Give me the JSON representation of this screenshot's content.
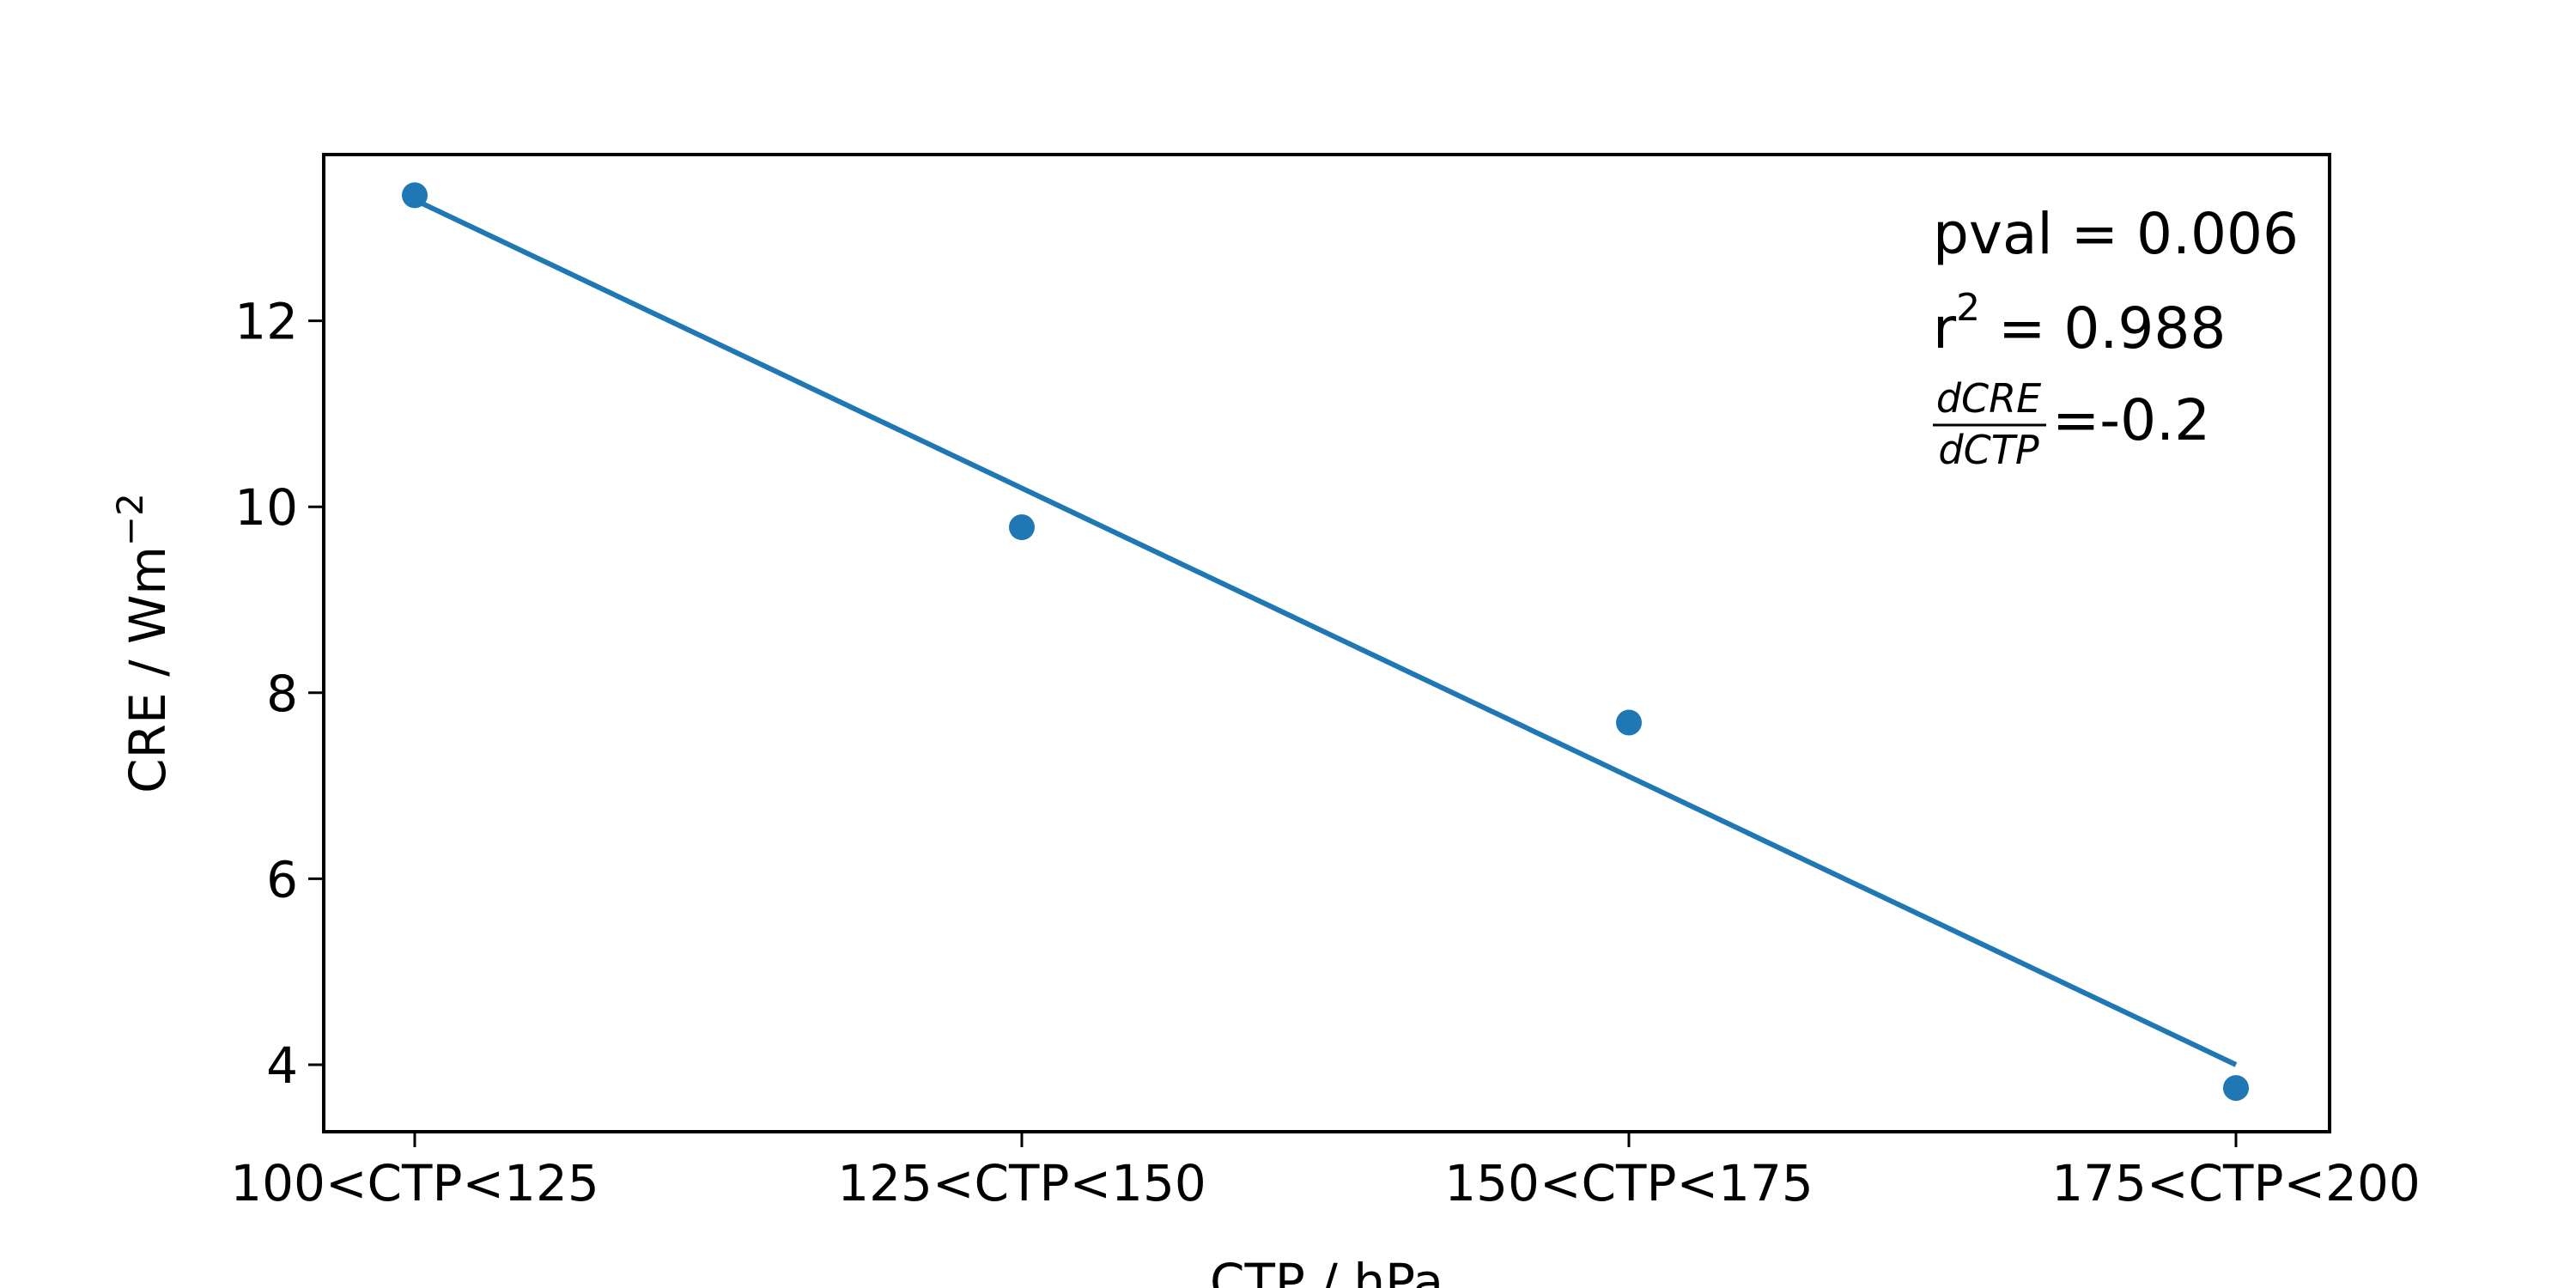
{
  "chart_data": {
    "type": "scatter",
    "title": "",
    "xlabel": "CTP / hPa",
    "ylabel": "CRE / Wm",
    "ylabel_exponent": "−2",
    "categories": [
      "100<CTP<125",
      "125<CTP<150",
      "150<CTP<175",
      "175<CTP<200"
    ],
    "series": [
      {
        "values": [
          13.35,
          9.78,
          7.68,
          3.75
        ],
        "color": "#1f77b4"
      }
    ],
    "fit_line": {
      "values": [
        13.3,
        10.2,
        7.1,
        4.0
      ],
      "color": "#1f77b4"
    },
    "yticks": [
      4,
      6,
      8,
      10,
      12
    ],
    "ylim": [
      3.3,
      13.8
    ],
    "grid": false,
    "legend": "none",
    "annotations": {
      "pval": "pval = 0.006",
      "r2_base": "r",
      "r2_exponent": "2",
      "r2_value": " = 0.988",
      "slope_numerator": "dCRE",
      "slope_denominator": "dCTP",
      "slope_value": "=-0.2"
    }
  }
}
